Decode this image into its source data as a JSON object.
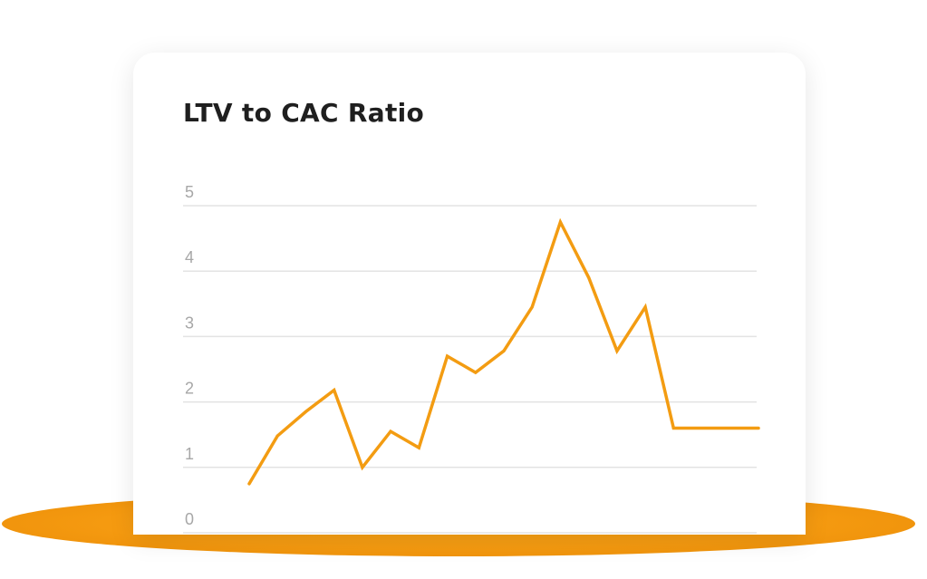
{
  "colors": {
    "line": "#f39c12",
    "ellipse": "#f59a10",
    "grid": "#e3e3e3",
    "tick_text": "#a7a7a7",
    "title_text": "#1f1f1f"
  },
  "chart_data": {
    "type": "line",
    "title": "LTV to CAC Ratio",
    "xlabel": "",
    "ylabel": "",
    "ylim": [
      0,
      5
    ],
    "yticks": [
      "0",
      "1",
      "2",
      "3",
      "4",
      "5"
    ],
    "grid": true,
    "legend": "none",
    "series": [
      {
        "values": [
          0.75,
          1.48,
          1.85,
          2.18,
          1.0,
          1.55,
          1.3,
          2.7,
          2.45,
          2.78,
          3.45,
          4.75,
          3.9,
          2.78,
          3.45,
          1.6,
          1.6,
          1.6,
          1.6
        ]
      }
    ]
  }
}
